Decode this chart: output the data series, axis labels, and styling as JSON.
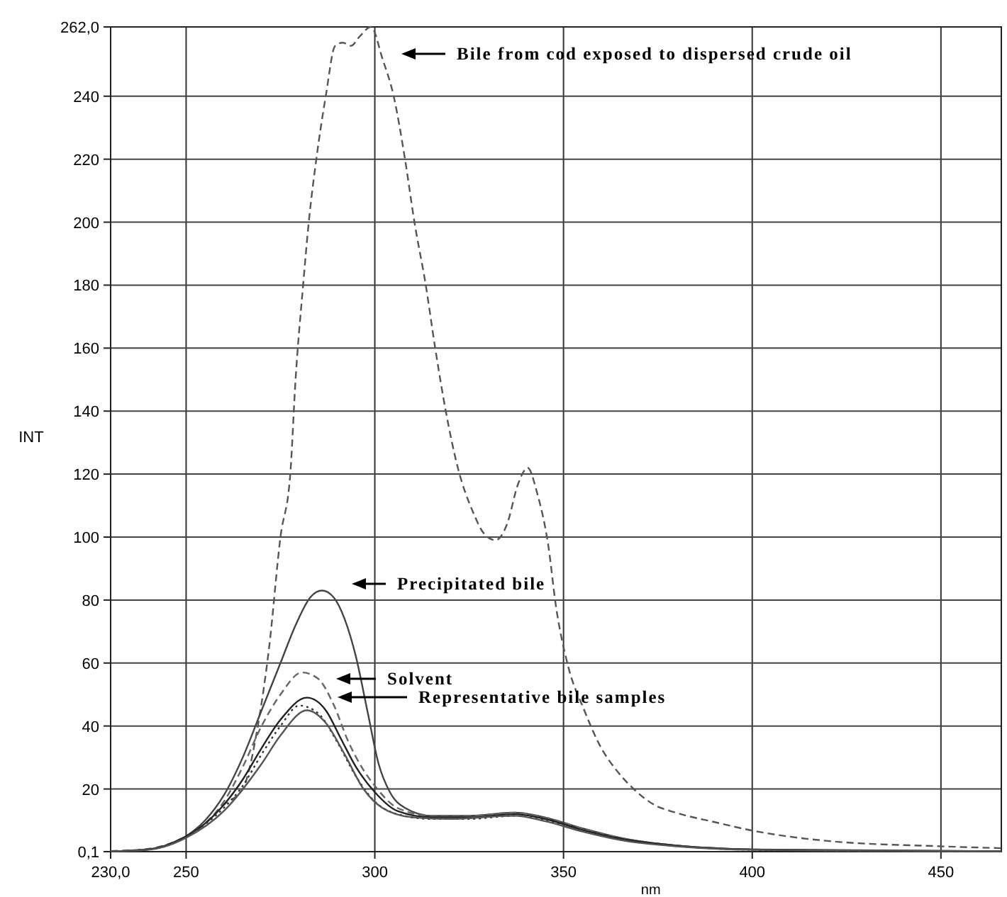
{
  "chart_data": {
    "type": "line",
    "xlabel": "nm",
    "ylabel": "INT",
    "grid": true,
    "xlim": [
      230,
      466
    ],
    "ylim": [
      0.1,
      262
    ],
    "xticks": [
      {
        "value": 230,
        "label": "230,0"
      },
      250,
      300,
      350,
      400,
      450
    ],
    "yticks": [
      {
        "value": 0.1,
        "label": "0,1"
      },
      20,
      40,
      60,
      80,
      100,
      120,
      140,
      160,
      180,
      200,
      220,
      240,
      {
        "value": 262,
        "label": "262,0"
      }
    ],
    "series": [
      {
        "color": "#555555",
        "line_style": "dashed",
        "x": [
          230,
          240,
          250,
          255,
          260,
          265,
          269,
          272,
          275,
          277.6,
          279,
          281,
          282.5,
          284.5,
          287,
          289.5,
          291.5,
          293.7,
          296,
          299,
          302,
          305,
          308,
          310.5,
          313.5,
          316,
          318.8,
          322,
          326,
          329,
          332,
          335,
          338,
          340.5,
          343,
          346,
          348,
          351,
          355.5,
          360,
          364,
          368.6,
          374,
          379.4,
          390,
          400,
          420,
          450,
          466
        ],
        "values": [
          0.3,
          1,
          5,
          9,
          15,
          20,
          40,
          65,
          100,
          120,
          150,
          180,
          200,
          220,
          240,
          256,
          257,
          256,
          259,
          262,
          252,
          240,
          220,
          200,
          180,
          160,
          140,
          122,
          108,
          101,
          99,
          104,
          117,
          122,
          114,
          97,
          78,
          60,
          45,
          33,
          26,
          20,
          15,
          12.6,
          9.5,
          6.8,
          3.5,
          1.8,
          1.2
        ]
      },
      {
        "color": "#444444",
        "line_style": "solid",
        "x": [
          230,
          240,
          250,
          255,
          260,
          265,
          270,
          275,
          279,
          283,
          286,
          289,
          292,
          295,
          298,
          301,
          304,
          308,
          315,
          325,
          337,
          345,
          355,
          365,
          380,
          400,
          430,
          466
        ],
        "values": [
          0.2,
          0.8,
          5,
          10,
          18,
          30,
          45,
          60,
          72,
          81,
          83,
          81,
          74,
          62,
          45,
          28,
          19,
          14,
          11.5,
          11.5,
          12.5,
          11,
          7.5,
          4.5,
          2,
          0.8,
          0.3,
          0.2
        ]
      },
      {
        "color": "#666666",
        "line_style": "dashed",
        "x": [
          230,
          240,
          250,
          255,
          260,
          265,
          270,
          275,
          280.7,
          285,
          289,
          293,
          297,
          300,
          306,
          315,
          325,
          337,
          345,
          355,
          365,
          380,
          400,
          466
        ],
        "values": [
          0.2,
          0.8,
          5,
          9,
          16,
          27,
          40,
          50,
          57,
          55,
          47,
          35,
          26,
          21,
          14,
          11.5,
          11.5,
          12.5,
          11,
          7.5,
          4.5,
          2,
          0.8,
          0.2
        ]
      },
      {
        "color": "#222222",
        "line_style": "solid",
        "x": [
          230,
          240,
          250,
          255,
          260,
          265,
          270,
          275,
          282,
          287,
          291,
          295,
          300,
          306,
          315,
          325,
          337,
          345,
          355,
          365,
          380,
          400,
          466
        ],
        "values": [
          0.2,
          0.8,
          5,
          9,
          15,
          23,
          33,
          42,
          49,
          45,
          36,
          27,
          19,
          13,
          11,
          11,
          12,
          10.5,
          7,
          4.2,
          2,
          0.8,
          0.2
        ]
      },
      {
        "color": "#333333",
        "line_style": "dotted",
        "x": [
          230,
          240,
          250,
          260,
          265,
          270,
          275,
          280,
          285,
          290,
          295,
          300,
          306,
          315,
          325,
          337,
          345,
          355,
          365,
          380,
          400,
          466
        ],
        "values": [
          0.2,
          0.8,
          5,
          14,
          21,
          31,
          40,
          46.5,
          44,
          35,
          24,
          16,
          12,
          10.5,
          10.5,
          11.5,
          10,
          6.8,
          4,
          1.9,
          0.7,
          0.2
        ]
      },
      {
        "color": "#555555",
        "line_style": "solid",
        "x": [
          230,
          240,
          250,
          260,
          270,
          275,
          282,
          287,
          292,
          297,
          302,
          310,
          320,
          337,
          345,
          355,
          365,
          380,
          400,
          466
        ],
        "values": [
          0.2,
          0.7,
          4.5,
          13,
          28,
          37,
          45,
          41,
          31,
          20,
          14,
          11,
          10.5,
          11.5,
          9.8,
          6.5,
          3.8,
          1.8,
          0.7,
          0.2
        ]
      }
    ],
    "annotations": [
      "Bile from cod exposed to dispersed crude oil",
      "Precipitated bile",
      "Solvent",
      "Representative bile samples"
    ]
  }
}
